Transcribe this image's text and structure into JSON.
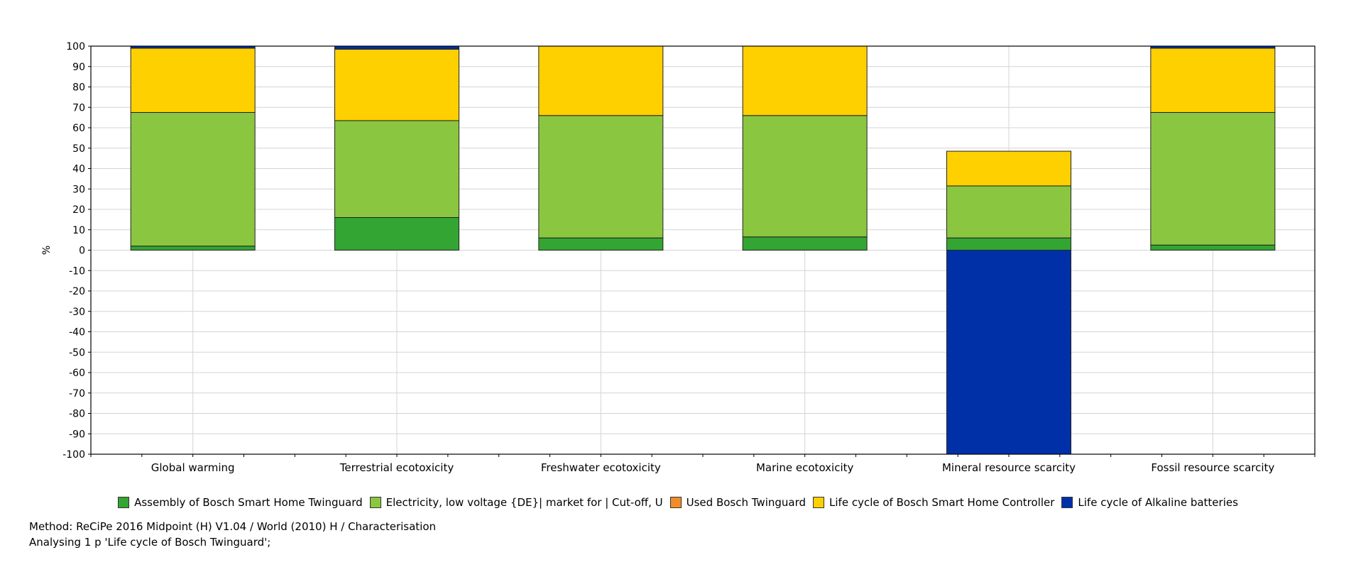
{
  "chart_data": {
    "type": "bar",
    "stacked": true,
    "ylabel": "%",
    "ylim": [
      -100,
      100
    ],
    "ytick_step": 10,
    "grid": true,
    "legend_position": "bottom",
    "categories": [
      "Global warming",
      "Terrestrial ecotoxicity",
      "Freshwater ecotoxicity",
      "Marine ecotoxicity",
      "Mineral resource scarcity",
      "Fossil resource scarcity"
    ],
    "series": [
      {
        "name": "Assembly of Bosch Smart Home Twinguard",
        "color": "#33a532",
        "values": [
          2,
          16,
          6,
          6.5,
          6,
          2.5
        ]
      },
      {
        "name": "Electricity, low voltage {DE}| market for | Cut-off, U",
        "color": "#8bc640",
        "values": [
          65.5,
          47.5,
          60,
          59.5,
          25.5,
          65
        ]
      },
      {
        "name": "Used Bosch Twinguard",
        "color": "#f28c28",
        "values": [
          0,
          0,
          0,
          0,
          0,
          0
        ]
      },
      {
        "name": "Life cycle of Bosch Smart Home Controller",
        "color": "#ffd000",
        "values": [
          31.5,
          35,
          34,
          34,
          17,
          31.5
        ]
      },
      {
        "name": "Life cycle of Alkaline batteries",
        "color": "#0030a8",
        "values": [
          1,
          1.5,
          0,
          0,
          -100,
          1
        ]
      }
    ]
  },
  "footer": {
    "method": "Method: ReCiPe 2016 Midpoint (H) V1.04 / World (2010) H / Characterisation",
    "analysing": "Analysing 1 p 'Life cycle of Bosch Twinguard';"
  }
}
